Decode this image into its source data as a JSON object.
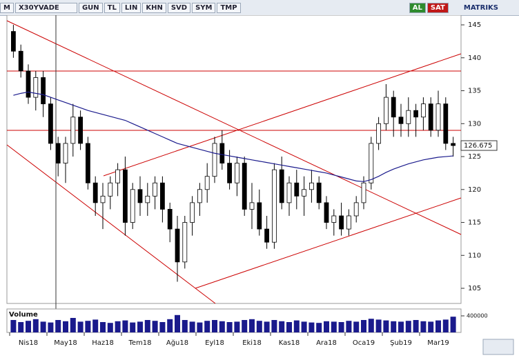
{
  "toolbar": {
    "menu": "M",
    "symbol": "X30YVADE",
    "buttons": [
      "GUN",
      "TL",
      "LIN",
      "KHN",
      "SVD",
      "SYM",
      "TMP"
    ],
    "buy": "AL",
    "sell": "SAT",
    "brand": "MATRIKS"
  },
  "chart_data": {
    "type": "candlestick",
    "categories": [
      "Nis18",
      "May18",
      "Haz18",
      "Tem18",
      "Ağu18",
      "Eyl18",
      "Eki18",
      "Kas18",
      "Ara18",
      "Oca19",
      "Şub19",
      "Mar19"
    ],
    "candles": [
      [
        144,
        145,
        140,
        141
      ],
      [
        141,
        142,
        137,
        138
      ],
      [
        138,
        139,
        133,
        134
      ],
      [
        134,
        138,
        132,
        137
      ],
      [
        137,
        138,
        131,
        133
      ],
      [
        133,
        134,
        126,
        127
      ],
      [
        127,
        128,
        122,
        124
      ],
      [
        124,
        128,
        121,
        127
      ],
      [
        127,
        133,
        125,
        131
      ],
      [
        131,
        132,
        126,
        127
      ],
      [
        127,
        128,
        120,
        121
      ],
      [
        121,
        122,
        116,
        118
      ],
      [
        118,
        121,
        114,
        119
      ],
      [
        119,
        122,
        117,
        121
      ],
      [
        121,
        124,
        119,
        123
      ],
      [
        123,
        125,
        113,
        115
      ],
      [
        115,
        121,
        114,
        120
      ],
      [
        120,
        122,
        116,
        118
      ],
      [
        118,
        121,
        116,
        119
      ],
      [
        119,
        122,
        117,
        121
      ],
      [
        121,
        122,
        115,
        117
      ],
      [
        117,
        118,
        112,
        114
      ],
      [
        114,
        116,
        106,
        109
      ],
      [
        109,
        116,
        108,
        115
      ],
      [
        115,
        119,
        113,
        118
      ],
      [
        118,
        121,
        116,
        120
      ],
      [
        120,
        124,
        118,
        122
      ],
      [
        122,
        128,
        121,
        127
      ],
      [
        127,
        129,
        123,
        124
      ],
      [
        124,
        126,
        120,
        121
      ],
      [
        121,
        125,
        119,
        124
      ],
      [
        124,
        125,
        116,
        117
      ],
      [
        117,
        121,
        114,
        118
      ],
      [
        118,
        120,
        113,
        114
      ],
      [
        114,
        116,
        111,
        112
      ],
      [
        112,
        124,
        111,
        123
      ],
      [
        123,
        125,
        117,
        118
      ],
      [
        118,
        122,
        116,
        121
      ],
      [
        121,
        123,
        117,
        119
      ],
      [
        119,
        122,
        116,
        120
      ],
      [
        120,
        123,
        118,
        121
      ],
      [
        121,
        122,
        117,
        118
      ],
      [
        118,
        119,
        114,
        115
      ],
      [
        115,
        117,
        113,
        116
      ],
      [
        116,
        118,
        113,
        114
      ],
      [
        114,
        117,
        113,
        116
      ],
      [
        116,
        119,
        115,
        118
      ],
      [
        118,
        122,
        117,
        121
      ],
      [
        121,
        128,
        120,
        127
      ],
      [
        127,
        131,
        126,
        130
      ],
      [
        130,
        136,
        129,
        134
      ],
      [
        134,
        135,
        128,
        131
      ],
      [
        131,
        133,
        128,
        130
      ],
      [
        130,
        134,
        128,
        132
      ],
      [
        132,
        133,
        128,
        131
      ],
      [
        131,
        134,
        129,
        133
      ],
      [
        133,
        134,
        128,
        129
      ],
      [
        129,
        135,
        128,
        133
      ],
      [
        133,
        134,
        126,
        127
      ],
      [
        127,
        128,
        125,
        126.675
      ]
    ],
    "moving_average": {
      "color": "#1a1a8c",
      "values": [
        134.3,
        134.6,
        134.8,
        134.6,
        134.4,
        134,
        133.6,
        133.2,
        132.8,
        132.4,
        132,
        131.7,
        131.4,
        131.1,
        130.8,
        130.5,
        130,
        129.5,
        129,
        128.5,
        128,
        127.5,
        127,
        126.7,
        126.4,
        126.1,
        125.8,
        125.5,
        125.3,
        125.1,
        124.9,
        124.7,
        124.5,
        124.3,
        124.1,
        123.9,
        123.7,
        123.5,
        123.3,
        123.1,
        122.9,
        122.7,
        122.5,
        122.2,
        121.9,
        121.6,
        121.3,
        121.2,
        121.5,
        122,
        122.6,
        123.1,
        123.5,
        123.9,
        124.2,
        124.5,
        124.7,
        124.9,
        125,
        125.1
      ]
    },
    "last_value": 126.675,
    "ylim": [
      102.7,
      146.47
    ],
    "yticks": [
      105,
      110,
      115,
      120,
      125,
      130,
      135,
      140,
      145
    ],
    "volume": {
      "label": "Volume",
      "color": "#1a1a8c",
      "ylim": [
        0,
        500000
      ],
      "yticks": [
        400000
      ],
      "values": [
        300000,
        250000,
        280000,
        320000,
        260000,
        240000,
        300000,
        270000,
        350000,
        260000,
        280000,
        310000,
        250000,
        230000,
        270000,
        290000,
        240000,
        260000,
        300000,
        280000,
        250000,
        320000,
        420000,
        300000,
        260000,
        240000,
        280000,
        300000,
        270000,
        250000,
        260000,
        300000,
        320000,
        280000,
        260000,
        300000,
        270000,
        250000,
        290000,
        260000,
        240000,
        230000,
        270000,
        260000,
        250000,
        280000,
        260000,
        300000,
        330000,
        310000,
        290000,
        270000,
        260000,
        280000,
        300000,
        270000,
        260000,
        290000,
        310000,
        380000
      ]
    }
  }
}
